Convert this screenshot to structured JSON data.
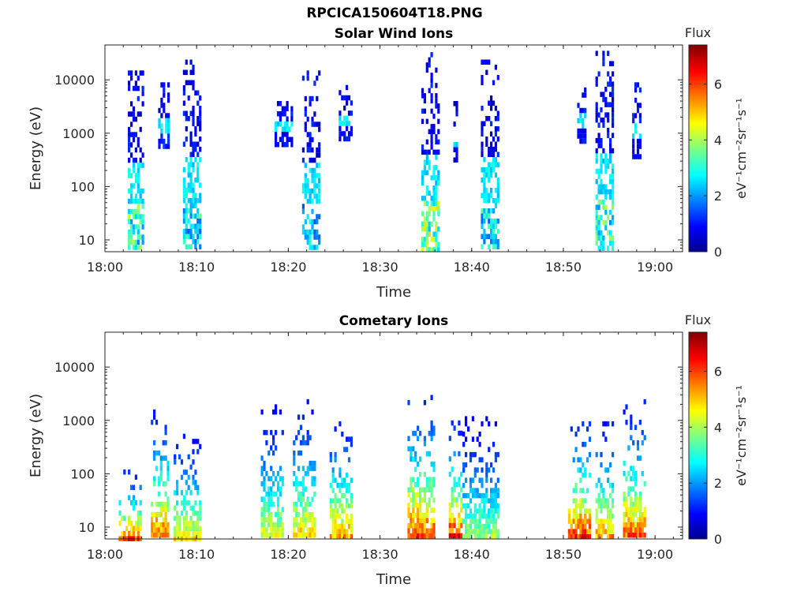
{
  "figure_title": "RPCICA150604T18.PNG",
  "chart_data": [
    {
      "type": "heatmap",
      "title": "Solar Wind Ions",
      "xlabel": "Time",
      "ylabel": "Energy (eV)",
      "yscale": "log",
      "ylim": [
        6,
        45000
      ],
      "xlim": [
        "18:00",
        "19:03"
      ],
      "xticks": [
        "18:00",
        "18:10",
        "18:20",
        "18:30",
        "18:40",
        "18:50",
        "19:00"
      ],
      "yticks": [
        "10",
        "100",
        "1000",
        "10000"
      ],
      "colorbar": {
        "title": "Flux",
        "label": "eV⁻¹cm⁻²sr⁻¹s⁻¹",
        "range": [
          0,
          7.4
        ],
        "ticks": [
          "0",
          "2",
          "4",
          "6"
        ]
      },
      "colormap": "jet",
      "bursts": [
        {
          "t_start": "18:02.5",
          "t_end": "18:04.2",
          "e_min": 6,
          "e_max": 15000,
          "peak_flux": 4.2
        },
        {
          "t_start": "18:05.8",
          "t_end": "18:07.0",
          "e_min": 500,
          "e_max": 9000,
          "peak_flux": 1.5
        },
        {
          "t_start": "18:08.5",
          "t_end": "18:10.5",
          "e_min": 6,
          "e_max": 24000,
          "peak_flux": 3.5
        },
        {
          "t_start": "18:18.5",
          "t_end": "18:20.5",
          "e_min": 600,
          "e_max": 5000,
          "peak_flux": 1.2
        },
        {
          "t_start": "18:21.5",
          "t_end": "18:23.5",
          "e_min": 6,
          "e_max": 15000,
          "peak_flux": 3.2
        },
        {
          "t_start": "18:25.5",
          "t_end": "18:27.0",
          "e_min": 700,
          "e_max": 8000,
          "peak_flux": 1.2
        },
        {
          "t_start": "18:34.5",
          "t_end": "18:36.5",
          "e_min": 6,
          "e_max": 33000,
          "peak_flux": 5.0
        },
        {
          "t_start": "18:38.0",
          "t_end": "18:38.5",
          "e_min": 300,
          "e_max": 5000,
          "peak_flux": 1.0
        },
        {
          "t_start": "18:41.0",
          "t_end": "18:43.0",
          "e_min": 6,
          "e_max": 24000,
          "peak_flux": 3.5
        },
        {
          "t_start": "18:51.5",
          "t_end": "18:52.5",
          "e_min": 700,
          "e_max": 9000,
          "peak_flux": 1.2
        },
        {
          "t_start": "18:53.5",
          "t_end": "18:55.5",
          "e_min": 6,
          "e_max": 35000,
          "peak_flux": 4.2
        },
        {
          "t_start": "18:57.5",
          "t_end": "18:58.5",
          "e_min": 300,
          "e_max": 9000,
          "peak_flux": 1.2
        }
      ]
    },
    {
      "type": "heatmap",
      "title": "Cometary Ions",
      "xlabel": "Time",
      "ylabel": "Energy (eV)",
      "yscale": "log",
      "ylim": [
        6,
        45000
      ],
      "xlim": [
        "18:00",
        "19:03"
      ],
      "xticks": [
        "18:00",
        "18:10",
        "18:20",
        "18:30",
        "18:40",
        "18:50",
        "19:00"
      ],
      "yticks": [
        "10",
        "100",
        "1000",
        "10000"
      ],
      "colorbar": {
        "title": "Flux",
        "label": "eV⁻¹cm⁻²sr⁻¹s⁻¹",
        "range": [
          0,
          7.4
        ],
        "ticks": [
          "0",
          "2",
          "4",
          "6"
        ]
      },
      "colormap": "jet",
      "bursts": [
        {
          "t_start": "18:01.5",
          "t_end": "18:04.0",
          "e_min": 6,
          "e_max": 120,
          "peak_flux": 6.8
        },
        {
          "t_start": "18:05.0",
          "t_end": "18:07.0",
          "e_min": 6,
          "e_max": 2000,
          "peak_flux": 6.5
        },
        {
          "t_start": "18:07.5",
          "t_end": "18:10.5",
          "e_min": 6,
          "e_max": 700,
          "peak_flux": 5.5
        },
        {
          "t_start": "18:17.0",
          "t_end": "18:19.5",
          "e_min": 6,
          "e_max": 2000,
          "peak_flux": 5.0
        },
        {
          "t_start": "18:20.5",
          "t_end": "18:23.0",
          "e_min": 6,
          "e_max": 2500,
          "peak_flux": 5.5
        },
        {
          "t_start": "18:24.5",
          "t_end": "18:27.0",
          "e_min": 6,
          "e_max": 1200,
          "peak_flux": 6.0
        },
        {
          "t_start": "18:33.0",
          "t_end": "18:36.0",
          "e_min": 6,
          "e_max": 3000,
          "peak_flux": 6.8
        },
        {
          "t_start": "18:37.5",
          "t_end": "18:39.0",
          "e_min": 6,
          "e_max": 1000,
          "peak_flux": 7.0
        },
        {
          "t_start": "18:39.0",
          "t_end": "18:43.0",
          "e_min": 6,
          "e_max": 1200,
          "peak_flux": 4.5
        },
        {
          "t_start": "18:50.5",
          "t_end": "18:53.0",
          "e_min": 6,
          "e_max": 1200,
          "peak_flux": 7.0
        },
        {
          "t_start": "18:53.5",
          "t_end": "18:55.5",
          "e_min": 6,
          "e_max": 1200,
          "peak_flux": 6.0
        },
        {
          "t_start": "18:56.5",
          "t_end": "18:59.0",
          "e_min": 6,
          "e_max": 2500,
          "peak_flux": 6.5
        }
      ]
    }
  ]
}
